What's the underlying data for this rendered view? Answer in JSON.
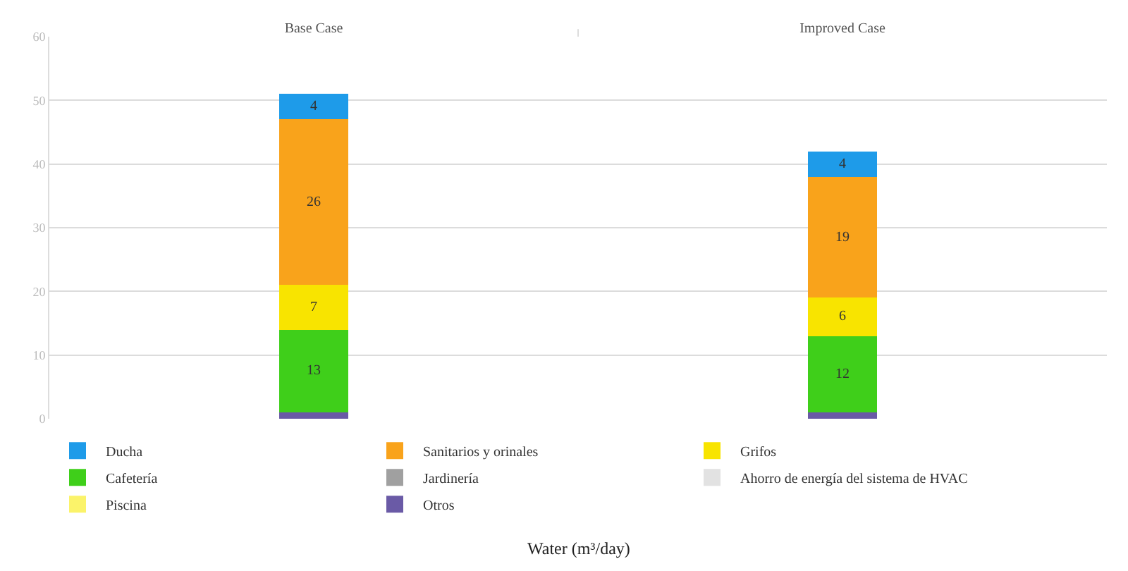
{
  "chart_data": {
    "type": "bar",
    "stacked": true,
    "annotations": [
      "Water (m³/day)"
    ],
    "categories": [
      "Base Case",
      "Improved Case"
    ],
    "series": [
      {
        "name": "Otros",
        "color": "#6a5aa6",
        "values": [
          1,
          1
        ],
        "value_labels": [
          null,
          null
        ]
      },
      {
        "name": "Piscina",
        "color": "#fbf36a",
        "values": [
          0,
          0
        ],
        "value_labels": [
          null,
          null
        ]
      },
      {
        "name": "Ahorro de energía del sistema de HVAC",
        "color": "#e2e2e2",
        "values": [
          0,
          0
        ],
        "value_labels": [
          null,
          null
        ]
      },
      {
        "name": "Jardinería",
        "color": "#a0a0a0",
        "values": [
          0,
          0
        ],
        "value_labels": [
          null,
          null
        ]
      },
      {
        "name": "Cafetería",
        "color": "#3fcf1a",
        "values": [
          13,
          12
        ],
        "value_labels": [
          "13",
          "12"
        ]
      },
      {
        "name": "Grifos",
        "color": "#f8e400",
        "values": [
          7,
          6
        ],
        "value_labels": [
          "7",
          "6"
        ]
      },
      {
        "name": "Sanitarios y orinales",
        "color": "#f9a31b",
        "values": [
          26,
          19
        ],
        "value_labels": [
          "26",
          "19"
        ]
      },
      {
        "name": "Ducha",
        "color": "#1e9be9",
        "values": [
          4,
          4
        ],
        "value_labels": [
          "4",
          "4"
        ]
      }
    ],
    "ylim": [
      0,
      60
    ],
    "yticks": [
      0,
      10,
      20,
      30,
      40,
      50,
      60
    ],
    "grid": "y",
    "legend": "bottom"
  }
}
